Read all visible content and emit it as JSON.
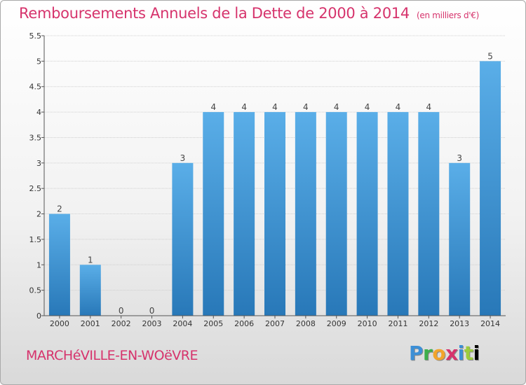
{
  "header": {
    "title": "Remboursements Annuels de la Dette de 2000 à 2014",
    "unit": "(en milliers d'€)"
  },
  "footer": {
    "city": "MARCHéVILLE-EN-WOëVRE",
    "logo": [
      "P",
      "r",
      "o",
      "x",
      "i",
      "t",
      "i"
    ]
  },
  "colors": {
    "title": "#d6336c",
    "bar_top": "#5aaee8",
    "bar_bottom": "#2878b8",
    "grid": "#d0d0d0"
  },
  "chart_data": {
    "type": "bar",
    "title": "Remboursements Annuels de la Dette de 2000 à 2014",
    "xlabel": "",
    "ylabel": "",
    "categories": [
      "2000",
      "2001",
      "2002",
      "2003",
      "2004",
      "2005",
      "2006",
      "2007",
      "2008",
      "2009",
      "2010",
      "2011",
      "2012",
      "2013",
      "2014"
    ],
    "values": [
      2,
      1,
      0,
      0,
      3,
      4,
      4,
      4,
      4,
      4,
      4,
      4,
      4,
      3,
      5
    ],
    "data_labels": [
      "2",
      "1",
      "0",
      "0",
      "3",
      "4",
      "4",
      "4",
      "4",
      "4",
      "4",
      "4",
      "4",
      "3",
      "5"
    ],
    "ylim": [
      0,
      5.5
    ],
    "yticks": [
      0,
      0.5,
      1,
      1.5,
      2,
      2.5,
      3,
      3.5,
      4,
      4.5,
      5,
      5.5
    ],
    "ytick_labels": [
      "0",
      "0.5",
      "1",
      "1.5",
      "2",
      "2.5",
      "3",
      "3.5",
      "4",
      "4.5",
      "5",
      "5.5"
    ],
    "grid": true,
    "legend": "none"
  }
}
